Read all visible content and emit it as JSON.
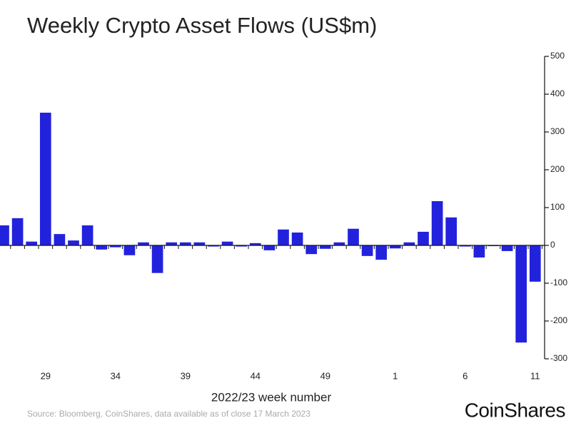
{
  "chart_data": {
    "type": "bar",
    "title": "Weekly Crypto Asset Flows (US$m)",
    "x_label": "2022/23 week number",
    "source": "Source: Bloomberg, CoinShares, data available as of close 17 March 2023",
    "logo": "CoinShares",
    "color": "#2222dd",
    "categories": [
      null,
      null,
      null,
      "29",
      null,
      null,
      null,
      null,
      "34",
      null,
      null,
      null,
      null,
      "39",
      null,
      null,
      null,
      null,
      "44",
      null,
      null,
      null,
      null,
      "49",
      null,
      null,
      null,
      null,
      "1",
      null,
      null,
      null,
      null,
      "6",
      null,
      null,
      null,
      null,
      "11"
    ],
    "values": [
      53,
      72,
      10,
      351,
      30,
      13,
      53,
      -11,
      -5,
      -26,
      8,
      -73,
      8,
      8,
      8,
      -3,
      10,
      -3,
      6,
      -13,
      42,
      34,
      -23,
      -9,
      8,
      44,
      -28,
      -38,
      -8,
      8,
      36,
      117,
      74,
      -3,
      -32,
      -2,
      -15,
      -257,
      -96
    ],
    "ylim": [
      -300,
      500
    ],
    "yticks": [
      -300,
      -200,
      -100,
      0,
      100,
      200,
      300,
      400,
      500
    ]
  }
}
